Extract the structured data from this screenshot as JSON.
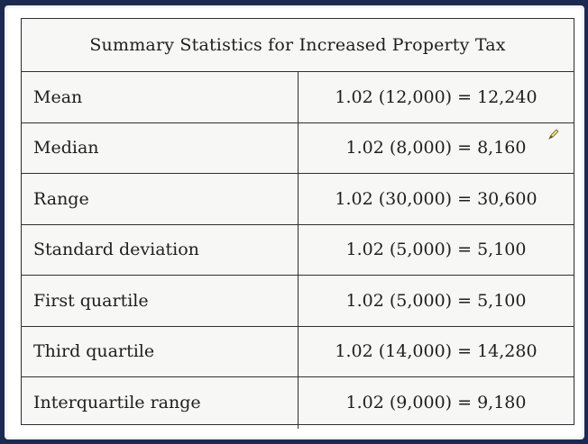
{
  "table": {
    "title": "Summary Statistics for Increased Property Tax",
    "rows": [
      {
        "label": "Mean",
        "value": "1.02 (12,000) = 12,240"
      },
      {
        "label": "Median",
        "value": "1.02 (8,000) = 8,160"
      },
      {
        "label": "Range",
        "value": "1.02 (30,000) = 30,600"
      },
      {
        "label": "Standard deviation",
        "value": "1.02 (5,000) = 5,100"
      },
      {
        "label": "First quartile",
        "value": "1.02 (5,000) = 5,100"
      },
      {
        "label": "Third quartile",
        "value": "1.02 (14,000) = 14,280"
      },
      {
        "label": "Interquartile range",
        "value": "1.02 (9,000) = 9,180"
      }
    ]
  },
  "icons": {
    "cursor": "pen-cursor-icon"
  }
}
